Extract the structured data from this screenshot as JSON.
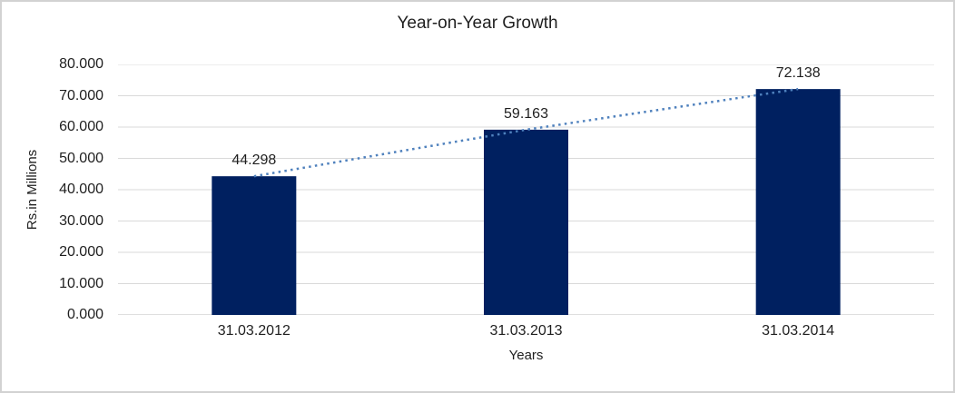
{
  "chart": {
    "title": "Year-on-Year Growth",
    "y_axis_title": "Rs.in Millions",
    "x_axis_title": "Years"
  },
  "chart_data": {
    "type": "bar",
    "title": "Year-on-Year Growth",
    "xlabel": "Years",
    "ylabel": "Rs.in Millions",
    "categories": [
      "31.03.2012",
      "31.03.2013",
      "31.03.2014"
    ],
    "values": [
      44.298,
      59.163,
      72.138
    ],
    "value_labels": [
      "44.298",
      "59.163",
      "72.138"
    ],
    "ylim": [
      0,
      80
    ],
    "ytick_step": 10,
    "ytick_labels": [
      "0.000",
      "10.000",
      "20.000",
      "30.000",
      "40.000",
      "50.000",
      "60.000",
      "70.000",
      "80.000"
    ],
    "grid": true,
    "legend": "none",
    "trendline": true,
    "bar_color": "#002060",
    "trendline_color": "#4F81BD",
    "gridline_color": "#D9D9D9",
    "axis_line_color": "#BFBFBF",
    "text_color": "#1f1f1f"
  }
}
